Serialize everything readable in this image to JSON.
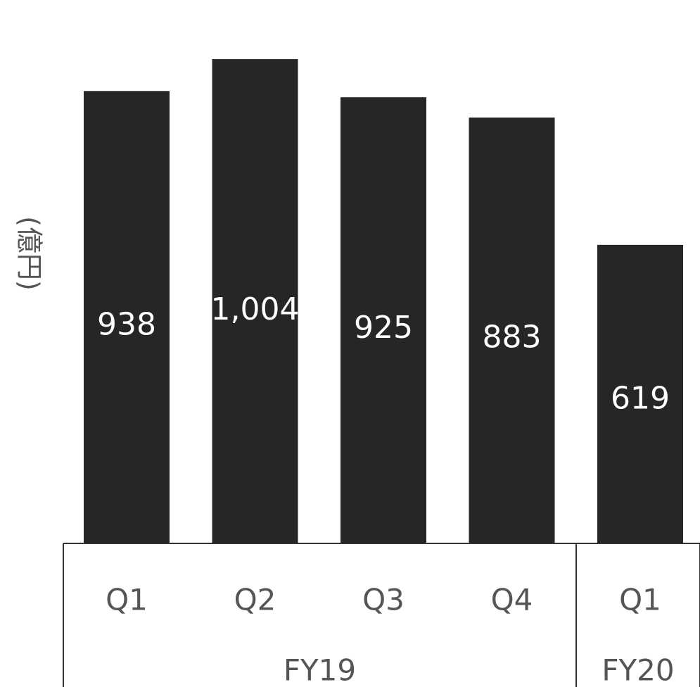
{
  "chart_data": {
    "type": "bar",
    "categories": [
      "Q1",
      "Q2",
      "Q3",
      "Q4",
      "Q1"
    ],
    "groups": [
      {
        "label": "FY19",
        "count": 4
      },
      {
        "label": "FY20",
        "count": 1
      }
    ],
    "values": [
      938,
      1004,
      925,
      883,
      619
    ],
    "value_labels": [
      "938",
      "1,004",
      "925",
      "883",
      "619"
    ],
    "ylabel": "(億円)",
    "ylim": [
      0,
      1100
    ],
    "grid": false,
    "bar_color": "#262626",
    "label_color": "#ffffff",
    "axis_text_color": "#555555"
  }
}
